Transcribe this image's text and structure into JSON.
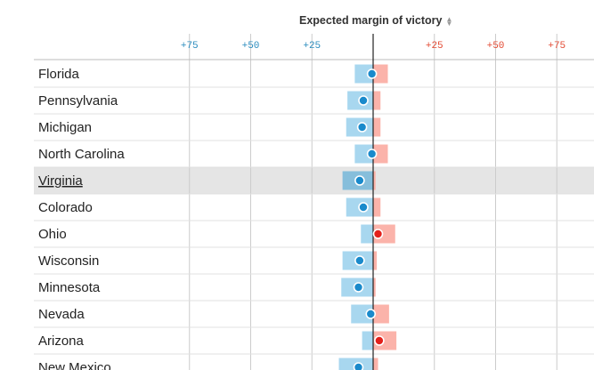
{
  "header": {
    "title": "Expected margin of victory",
    "sort_icon": "sort-updown-icon"
  },
  "colors": {
    "dem_range": "#a8d7ef",
    "rep_range": "#fbb3aa",
    "dem_dot": "#1a8acb",
    "rep_dot": "#e3201b",
    "dem_tick": "#2b8cbe",
    "rep_tick": "#e34a33",
    "highlight_row": "#e5e5e5",
    "highlight_dem_range": "#86bedb",
    "grid": "#cccccc",
    "center_line": "#222222"
  },
  "chart_data": {
    "type": "range-dot",
    "xlim": [
      -90,
      90
    ],
    "x_ticks": [
      {
        "value": -75,
        "label": "+75",
        "side": "dem"
      },
      {
        "value": -50,
        "label": "+50",
        "side": "dem"
      },
      {
        "value": -25,
        "label": "+25",
        "side": "dem"
      },
      {
        "value": 25,
        "label": "+25",
        "side": "rep"
      },
      {
        "value": 50,
        "label": "+50",
        "side": "rep"
      },
      {
        "value": 75,
        "label": "+75",
        "side": "rep"
      }
    ],
    "highlighted_state": "Virginia",
    "rows": [
      {
        "state": "Florida",
        "low": -7.5,
        "high": 6,
        "point": -0.5,
        "winner": "dem"
      },
      {
        "state": "Pennsylvania",
        "low": -10.5,
        "high": 3,
        "point": -4,
        "winner": "dem"
      },
      {
        "state": "Michigan",
        "low": -11,
        "high": 3,
        "point": -4.5,
        "winner": "dem"
      },
      {
        "state": "North Carolina",
        "low": -7.5,
        "high": 6,
        "point": -0.5,
        "winner": "dem"
      },
      {
        "state": "Virginia",
        "low": -12.5,
        "high": 1,
        "point": -5.5,
        "winner": "dem"
      },
      {
        "state": "Colorado",
        "low": -11,
        "high": 3,
        "point": -4,
        "winner": "dem"
      },
      {
        "state": "Ohio",
        "low": -5,
        "high": 9,
        "point": 2,
        "winner": "rep"
      },
      {
        "state": "Wisconsin",
        "low": -12.5,
        "high": 1.5,
        "point": -5.5,
        "winner": "dem"
      },
      {
        "state": "Minnesota",
        "low": -13,
        "high": 1,
        "point": -6,
        "winner": "dem"
      },
      {
        "state": "Nevada",
        "low": -9,
        "high": 6.5,
        "point": -1,
        "winner": "dem"
      },
      {
        "state": "Arizona",
        "low": -4.5,
        "high": 9.5,
        "point": 2.5,
        "winner": "rep"
      },
      {
        "state": "New Mexico",
        "low": -14,
        "high": 2,
        "point": -6,
        "winner": "dem"
      }
    ]
  }
}
